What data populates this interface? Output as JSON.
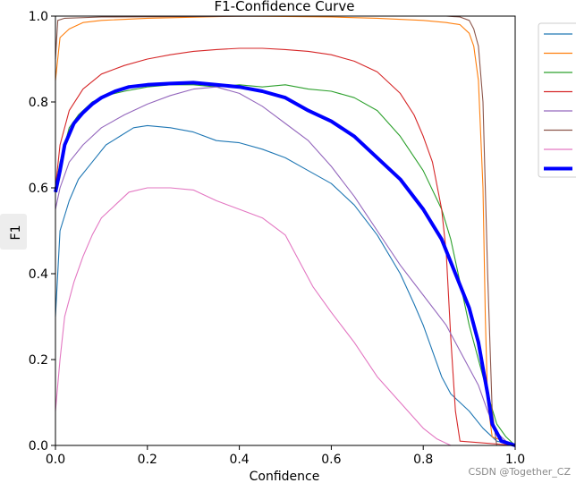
{
  "chart_data": {
    "type": "line",
    "title": "F1-Confidence Curve",
    "xlabel": "Confidence",
    "ylabel": "F1",
    "xlim": [
      0.0,
      1.0
    ],
    "ylim": [
      0.0,
      1.0
    ],
    "xticks": [
      "0.0",
      "0.2",
      "0.4",
      "0.6",
      "0.8",
      "1.0"
    ],
    "yticks": [
      "0.0",
      "0.2",
      "0.4",
      "0.6",
      "0.8",
      "1.0"
    ],
    "grid": false,
    "legend_position": "outside-right-top",
    "series": [
      {
        "color": "#1f77b4",
        "points": [
          [
            0.0,
            0.3
          ],
          [
            0.01,
            0.5
          ],
          [
            0.03,
            0.57
          ],
          [
            0.05,
            0.62
          ],
          [
            0.08,
            0.66
          ],
          [
            0.11,
            0.7
          ],
          [
            0.14,
            0.72
          ],
          [
            0.17,
            0.74
          ],
          [
            0.2,
            0.745
          ],
          [
            0.25,
            0.74
          ],
          [
            0.3,
            0.73
          ],
          [
            0.35,
            0.71
          ],
          [
            0.4,
            0.705
          ],
          [
            0.45,
            0.69
          ],
          [
            0.5,
            0.67
          ],
          [
            0.55,
            0.64
          ],
          [
            0.6,
            0.61
          ],
          [
            0.65,
            0.56
          ],
          [
            0.7,
            0.49
          ],
          [
            0.75,
            0.4
          ],
          [
            0.78,
            0.33
          ],
          [
            0.8,
            0.28
          ],
          [
            0.82,
            0.22
          ],
          [
            0.84,
            0.16
          ],
          [
            0.86,
            0.12
          ],
          [
            0.88,
            0.1
          ],
          [
            0.9,
            0.08
          ],
          [
            0.93,
            0.04
          ],
          [
            0.96,
            0.01
          ],
          [
            1.0,
            0.0
          ]
        ]
      },
      {
        "color": "#ff7f0e",
        "points": [
          [
            0.0,
            0.85
          ],
          [
            0.01,
            0.95
          ],
          [
            0.03,
            0.97
          ],
          [
            0.06,
            0.985
          ],
          [
            0.1,
            0.99
          ],
          [
            0.2,
            0.995
          ],
          [
            0.4,
            1.0
          ],
          [
            0.6,
            0.998
          ],
          [
            0.7,
            0.995
          ],
          [
            0.8,
            0.99
          ],
          [
            0.85,
            0.985
          ],
          [
            0.88,
            0.98
          ],
          [
            0.9,
            0.96
          ],
          [
            0.91,
            0.93
          ],
          [
            0.92,
            0.85
          ],
          [
            0.93,
            0.6
          ],
          [
            0.935,
            0.3
          ],
          [
            0.94,
            0.1
          ],
          [
            0.95,
            0.02
          ],
          [
            1.0,
            0.0
          ]
        ]
      },
      {
        "color": "#2ca02c",
        "points": [
          [
            0.0,
            0.6
          ],
          [
            0.01,
            0.66
          ],
          [
            0.03,
            0.74
          ],
          [
            0.05,
            0.77
          ],
          [
            0.08,
            0.8
          ],
          [
            0.11,
            0.815
          ],
          [
            0.15,
            0.825
          ],
          [
            0.2,
            0.835
          ],
          [
            0.25,
            0.84
          ],
          [
            0.3,
            0.84
          ],
          [
            0.35,
            0.835
          ],
          [
            0.4,
            0.84
          ],
          [
            0.45,
            0.835
          ],
          [
            0.5,
            0.84
          ],
          [
            0.55,
            0.83
          ],
          [
            0.6,
            0.825
          ],
          [
            0.65,
            0.81
          ],
          [
            0.7,
            0.78
          ],
          [
            0.75,
            0.72
          ],
          [
            0.8,
            0.64
          ],
          [
            0.84,
            0.55
          ],
          [
            0.86,
            0.48
          ],
          [
            0.88,
            0.38
          ],
          [
            0.9,
            0.28
          ],
          [
            0.92,
            0.2
          ],
          [
            0.94,
            0.12
          ],
          [
            0.96,
            0.05
          ],
          [
            0.98,
            0.02
          ],
          [
            1.0,
            0.0
          ]
        ]
      },
      {
        "color": "#d62728",
        "points": [
          [
            0.0,
            0.6
          ],
          [
            0.01,
            0.7
          ],
          [
            0.03,
            0.78
          ],
          [
            0.06,
            0.83
          ],
          [
            0.1,
            0.865
          ],
          [
            0.15,
            0.885
          ],
          [
            0.2,
            0.9
          ],
          [
            0.25,
            0.91
          ],
          [
            0.3,
            0.918
          ],
          [
            0.35,
            0.922
          ],
          [
            0.4,
            0.925
          ],
          [
            0.45,
            0.925
          ],
          [
            0.5,
            0.922
          ],
          [
            0.55,
            0.918
          ],
          [
            0.6,
            0.91
          ],
          [
            0.65,
            0.895
          ],
          [
            0.7,
            0.87
          ],
          [
            0.75,
            0.82
          ],
          [
            0.78,
            0.77
          ],
          [
            0.8,
            0.72
          ],
          [
            0.82,
            0.66
          ],
          [
            0.84,
            0.55
          ],
          [
            0.85,
            0.45
          ],
          [
            0.86,
            0.25
          ],
          [
            0.87,
            0.08
          ],
          [
            0.88,
            0.01
          ],
          [
            1.0,
            0.0
          ]
        ]
      },
      {
        "color": "#9467bd",
        "points": [
          [
            0.0,
            0.55
          ],
          [
            0.01,
            0.6
          ],
          [
            0.03,
            0.66
          ],
          [
            0.06,
            0.7
          ],
          [
            0.1,
            0.74
          ],
          [
            0.15,
            0.77
          ],
          [
            0.2,
            0.795
          ],
          [
            0.25,
            0.815
          ],
          [
            0.3,
            0.83
          ],
          [
            0.35,
            0.835
          ],
          [
            0.4,
            0.82
          ],
          [
            0.45,
            0.79
          ],
          [
            0.5,
            0.75
          ],
          [
            0.55,
            0.71
          ],
          [
            0.6,
            0.65
          ],
          [
            0.65,
            0.58
          ],
          [
            0.7,
            0.5
          ],
          [
            0.75,
            0.42
          ],
          [
            0.8,
            0.35
          ],
          [
            0.85,
            0.28
          ],
          [
            0.88,
            0.22
          ],
          [
            0.9,
            0.18
          ],
          [
            0.92,
            0.14
          ],
          [
            0.94,
            0.08
          ],
          [
            0.96,
            0.03
          ],
          [
            0.98,
            0.01
          ],
          [
            1.0,
            0.0
          ]
        ]
      },
      {
        "color": "#8c564b",
        "points": [
          [
            0.0,
            0.9
          ],
          [
            0.005,
            0.99
          ],
          [
            0.02,
            0.995
          ],
          [
            0.1,
            0.998
          ],
          [
            0.5,
            1.0
          ],
          [
            0.85,
            1.0
          ],
          [
            0.88,
            0.998
          ],
          [
            0.9,
            0.99
          ],
          [
            0.91,
            0.97
          ],
          [
            0.92,
            0.93
          ],
          [
            0.93,
            0.8
          ],
          [
            0.94,
            0.4
          ],
          [
            0.95,
            0.08
          ],
          [
            0.96,
            0.0
          ],
          [
            1.0,
            0.0
          ]
        ]
      },
      {
        "color": "#e377c2",
        "points": [
          [
            0.0,
            0.08
          ],
          [
            0.01,
            0.2
          ],
          [
            0.02,
            0.3
          ],
          [
            0.04,
            0.38
          ],
          [
            0.06,
            0.44
          ],
          [
            0.08,
            0.49
          ],
          [
            0.1,
            0.53
          ],
          [
            0.13,
            0.56
          ],
          [
            0.16,
            0.59
          ],
          [
            0.2,
            0.6
          ],
          [
            0.25,
            0.6
          ],
          [
            0.3,
            0.595
          ],
          [
            0.35,
            0.57
          ],
          [
            0.4,
            0.55
          ],
          [
            0.45,
            0.53
          ],
          [
            0.5,
            0.49
          ],
          [
            0.53,
            0.43
          ],
          [
            0.56,
            0.37
          ],
          [
            0.6,
            0.31
          ],
          [
            0.65,
            0.24
          ],
          [
            0.7,
            0.16
          ],
          [
            0.75,
            0.1
          ],
          [
            0.8,
            0.04
          ],
          [
            0.83,
            0.015
          ],
          [
            0.86,
            0.0
          ],
          [
            1.0,
            0.0
          ]
        ]
      },
      {
        "color": "#0000ff",
        "thick": true,
        "points": [
          [
            0.0,
            0.59
          ],
          [
            0.01,
            0.64
          ],
          [
            0.02,
            0.7
          ],
          [
            0.04,
            0.75
          ],
          [
            0.06,
            0.775
          ],
          [
            0.08,
            0.795
          ],
          [
            0.1,
            0.81
          ],
          [
            0.13,
            0.825
          ],
          [
            0.16,
            0.835
          ],
          [
            0.2,
            0.84
          ],
          [
            0.25,
            0.843
          ],
          [
            0.3,
            0.845
          ],
          [
            0.35,
            0.84
          ],
          [
            0.4,
            0.835
          ],
          [
            0.45,
            0.825
          ],
          [
            0.5,
            0.81
          ],
          [
            0.55,
            0.78
          ],
          [
            0.6,
            0.755
          ],
          [
            0.65,
            0.72
          ],
          [
            0.7,
            0.67
          ],
          [
            0.75,
            0.62
          ],
          [
            0.8,
            0.55
          ],
          [
            0.84,
            0.48
          ],
          [
            0.87,
            0.4
          ],
          [
            0.9,
            0.32
          ],
          [
            0.92,
            0.24
          ],
          [
            0.93,
            0.18
          ],
          [
            0.94,
            0.12
          ],
          [
            0.95,
            0.05
          ],
          [
            0.97,
            0.01
          ],
          [
            1.0,
            0.0
          ]
        ]
      }
    ]
  },
  "watermark": "CSDN @Together_CZ"
}
